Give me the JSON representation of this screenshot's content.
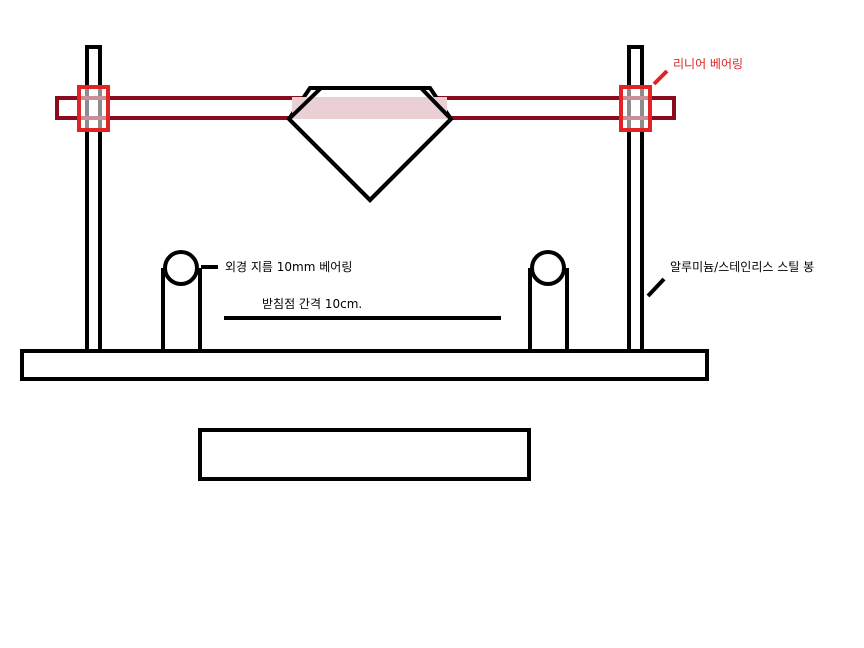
{
  "labels": {
    "linear_bearing": "리니어 베어링",
    "outer_bearing": "외경 지름 10mm 베어링",
    "support_spacing": "받침점 간격 10cm.",
    "rod_material": "알루미늄/스테인리스 스틸 봉"
  },
  "colors": {
    "outline": "#000000",
    "crossbar": "#8b0a1e",
    "bearing_box": "#e02424",
    "label_red": "#e02424",
    "background": "#ffffff"
  }
}
